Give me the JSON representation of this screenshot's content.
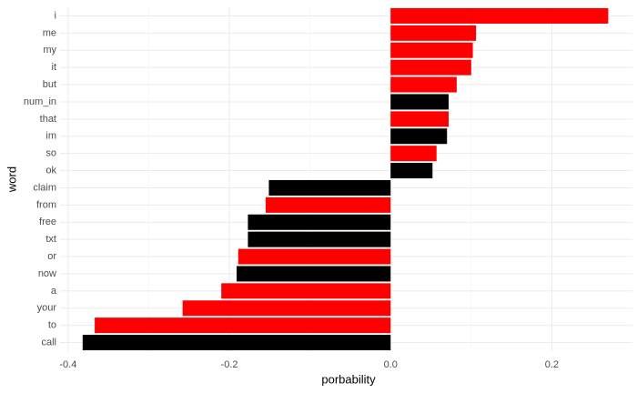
{
  "chart_data": {
    "type": "bar",
    "orientation": "horizontal",
    "x_label": "porbability",
    "y_label": "word",
    "categories": [
      "i",
      "me",
      "my",
      "it",
      "but",
      "num_in",
      "that",
      "im",
      "so",
      "ok",
      "claim",
      "from",
      "free",
      "txt",
      "or",
      "now",
      "a",
      "your",
      "to",
      "call"
    ],
    "values": [
      0.27,
      0.106,
      0.102,
      0.1,
      0.082,
      0.072,
      0.072,
      0.07,
      0.057,
      0.052,
      -0.151,
      -0.155,
      -0.177,
      -0.177,
      -0.189,
      -0.191,
      -0.21,
      -0.258,
      -0.367,
      -0.382
    ],
    "colors": [
      "#ff0000",
      "#ff0000",
      "#ff0000",
      "#ff0000",
      "#ff0000",
      "#000000",
      "#ff0000",
      "#000000",
      "#ff0000",
      "#000000",
      "#000000",
      "#ff0000",
      "#000000",
      "#000000",
      "#ff0000",
      "#000000",
      "#ff0000",
      "#ff0000",
      "#ff0000",
      "#000000"
    ],
    "xlim": [
      -0.41,
      0.3
    ],
    "xticks": [
      -0.4,
      -0.2,
      {
        "value": 0,
        "label": "0.0"
      },
      0.2
    ],
    "grid": true
  }
}
